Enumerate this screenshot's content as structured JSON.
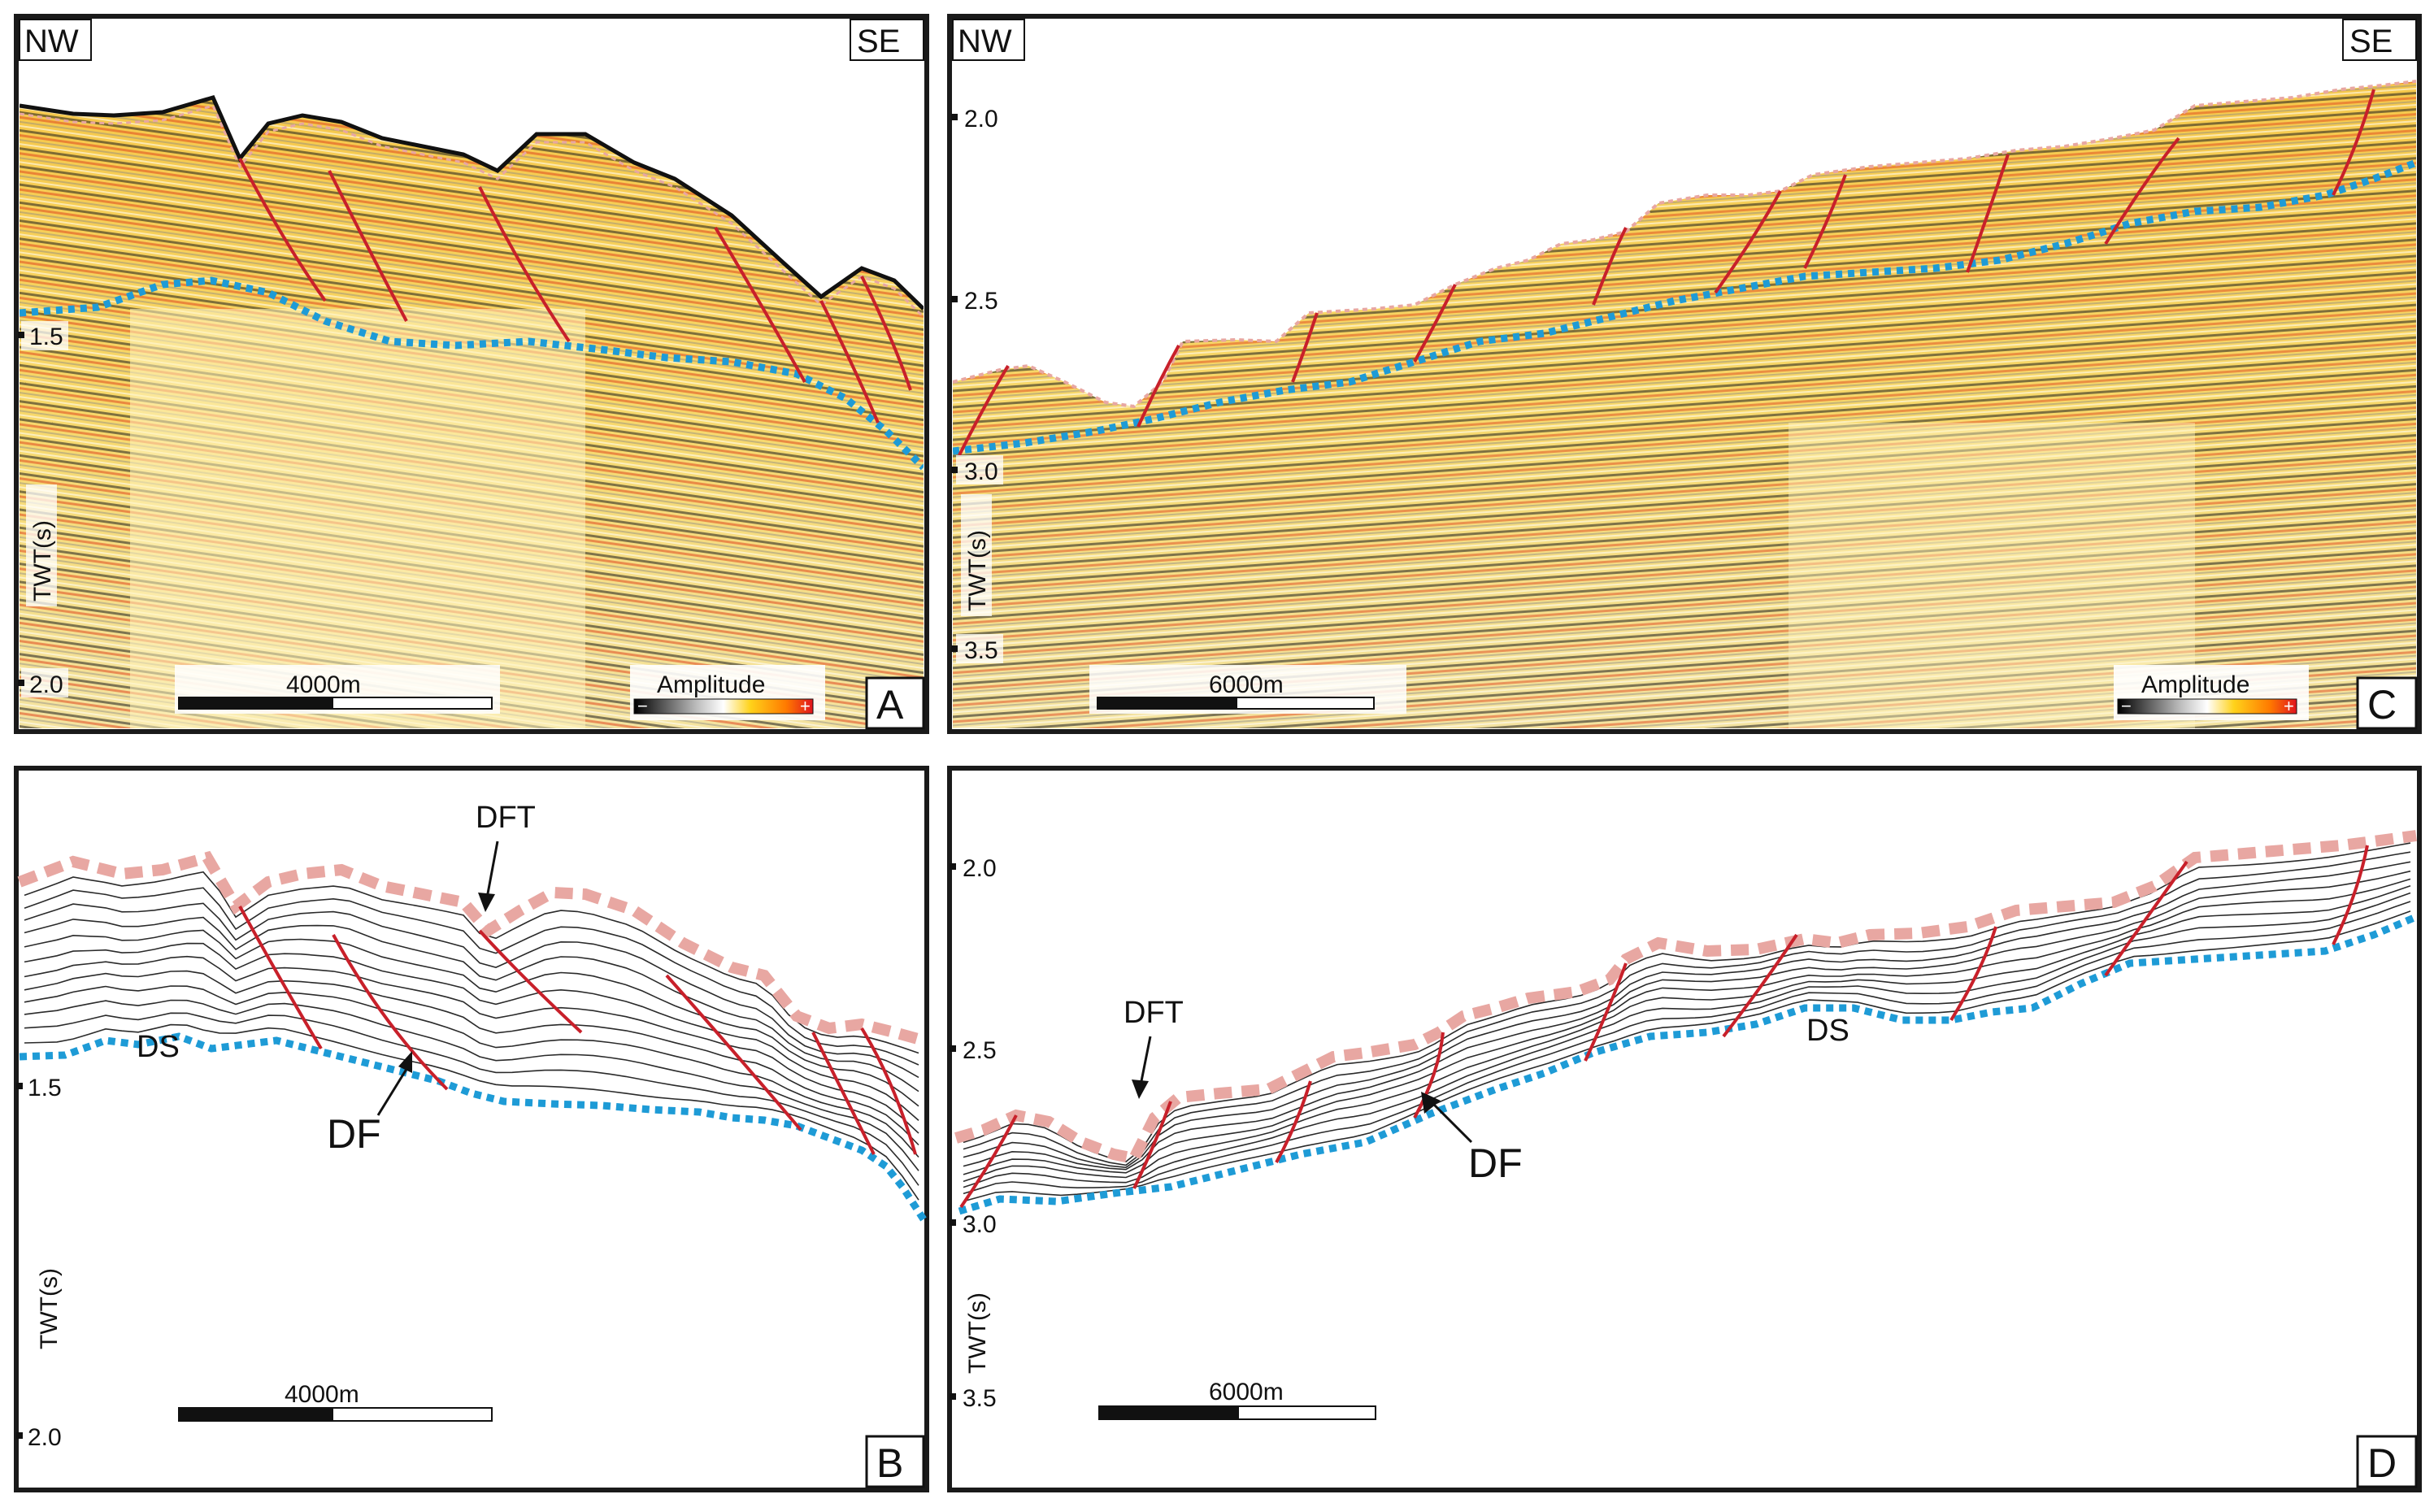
{
  "panels": {
    "A": {
      "letter": "A",
      "dir_left": "NW",
      "dir_right": "SE",
      "axis_label": "TWT(s)",
      "ticks": [
        "1.5",
        "2.0"
      ],
      "scale_label": "4000m",
      "legend_title": "Amplitude",
      "legend_minus": "−",
      "legend_plus": "+"
    },
    "B": {
      "letter": "B",
      "axis_label": "TWT(s)",
      "ticks": [
        "1.5",
        "2.0"
      ],
      "scale_label": "4000m",
      "annotations": {
        "dft": "DFT",
        "ds": "DS",
        "df": "DF"
      }
    },
    "C": {
      "letter": "C",
      "dir_left": "NW",
      "dir_right": "SE",
      "axis_label": "TWT(s)",
      "ticks": [
        "2.0",
        "2.5",
        "3.0",
        "3.5"
      ],
      "scale_label": "6000m",
      "legend_title": "Amplitude",
      "legend_minus": "−",
      "legend_plus": "+"
    },
    "D": {
      "letter": "D",
      "axis_label": "TWT(s)",
      "ticks": [
        "2.0",
        "2.5",
        "3.0",
        "3.5"
      ],
      "scale_label": "6000m",
      "annotations": {
        "dft": "DFT",
        "ds": "DS",
        "df": "DF"
      }
    }
  },
  "colors": {
    "seafloor_pink": "#e8a7a2",
    "ds_blue": "#1e9bd6",
    "fault_red": "#c8202a",
    "frame": "#1a1a1a"
  }
}
